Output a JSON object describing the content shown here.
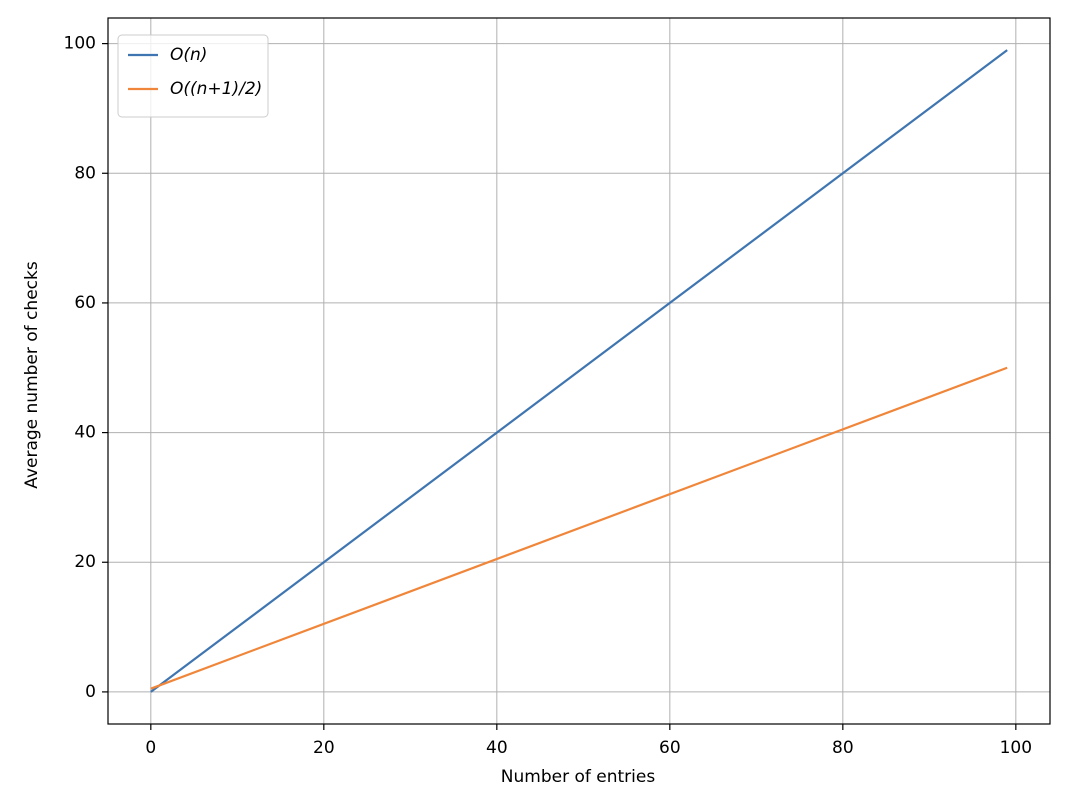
{
  "chart_data": {
    "type": "line",
    "x_label": "Number of entries",
    "y_label": "Average number of checks",
    "x": [
      0,
      99
    ],
    "series": [
      {
        "name": "O(n)",
        "color": "#3f75b0",
        "values": [
          0,
          99
        ]
      },
      {
        "name": "O((n+1)/2)",
        "color": "#f0863a",
        "values": [
          0.5,
          50
        ]
      }
    ],
    "xlim": [
      -4.95,
      103.95
    ],
    "xticks": [
      0,
      20,
      40,
      60,
      80,
      100
    ],
    "ylim": [
      -4.95,
      103.95
    ],
    "yticks": [
      0,
      20,
      40,
      60,
      80,
      100
    ],
    "grid": true,
    "legend": "upper-left"
  }
}
